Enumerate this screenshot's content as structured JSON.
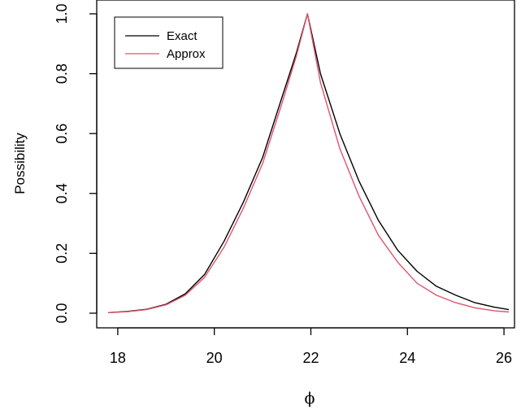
{
  "chart_data": {
    "type": "line",
    "xlabel": "ϕ",
    "ylabel": "Possibility",
    "xlim": [
      17.8,
      26.1
    ],
    "ylim": [
      0,
      1
    ],
    "x_ticks": [
      18,
      20,
      22,
      24,
      26
    ],
    "x_tick_labels": [
      "18",
      "20",
      "22",
      "24",
      "26"
    ],
    "y_ticks": [
      0,
      0.2,
      0.4,
      0.6,
      0.8,
      1.0
    ],
    "y_tick_labels": [
      "0.0",
      "0.2",
      "0.4",
      "0.6",
      "0.8",
      "1.0"
    ],
    "legend_position": "top-left",
    "series": [
      {
        "name": "Exact",
        "color": "#000000",
        "x": [
          17.8,
          18.2,
          18.6,
          19.0,
          19.4,
          19.8,
          20.2,
          20.6,
          21.0,
          21.4,
          21.7,
          21.93,
          22.2,
          22.6,
          23.0,
          23.4,
          23.8,
          24.2,
          24.6,
          25.0,
          25.4,
          25.8,
          26.1
        ],
        "y": [
          0.002,
          0.006,
          0.013,
          0.03,
          0.065,
          0.13,
          0.24,
          0.37,
          0.52,
          0.72,
          0.87,
          1.0,
          0.8,
          0.6,
          0.44,
          0.31,
          0.21,
          0.14,
          0.09,
          0.06,
          0.035,
          0.02,
          0.012
        ]
      },
      {
        "name": "Approx",
        "color": "#DF536B",
        "x": [
          17.8,
          18.2,
          18.6,
          19.0,
          19.4,
          19.8,
          20.2,
          20.6,
          21.0,
          21.4,
          21.7,
          21.93,
          22.2,
          22.6,
          23.0,
          23.4,
          23.8,
          24.2,
          24.6,
          25.0,
          25.4,
          25.8,
          26.1
        ],
        "y": [
          0.002,
          0.005,
          0.012,
          0.028,
          0.06,
          0.12,
          0.22,
          0.35,
          0.5,
          0.7,
          0.86,
          1.0,
          0.77,
          0.55,
          0.39,
          0.26,
          0.17,
          0.1,
          0.06,
          0.035,
          0.018,
          0.008,
          0.004
        ]
      }
    ]
  }
}
